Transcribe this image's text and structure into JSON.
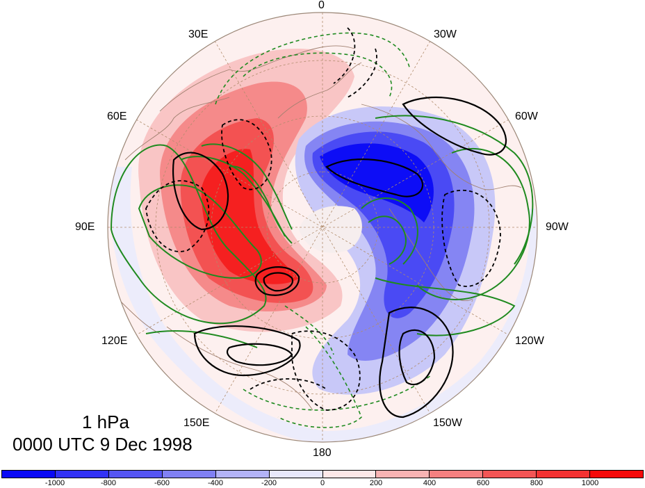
{
  "map": {
    "pressure_level": "1 hPa",
    "valid_time": "0000 UTC 9 Dec 1998",
    "projection": "north polar stereographic",
    "longitude_labels": [
      "0",
      "30W",
      "60W",
      "90W",
      "120W",
      "150W",
      "180",
      "150E",
      "120E",
      "90E",
      "60E",
      "30E"
    ],
    "colorbar": {
      "colors": [
        "#0a0af5",
        "#3232f5",
        "#5555f3",
        "#8080f3",
        "#b3b3f7",
        "#e8e8fb",
        "#fde8e8",
        "#f8b3b3",
        "#f58080",
        "#f35555",
        "#f33232",
        "#f50a0a"
      ],
      "labels": [
        "-1000",
        "-800",
        "-600",
        "-400",
        "-200",
        "0",
        "200",
        "400",
        "600",
        "800",
        "1000"
      ]
    },
    "contour_colors": {
      "black": "#000000",
      "green": "#1f8a1f",
      "land_outline": "#a08070",
      "grid": "#b08c6c"
    }
  }
}
